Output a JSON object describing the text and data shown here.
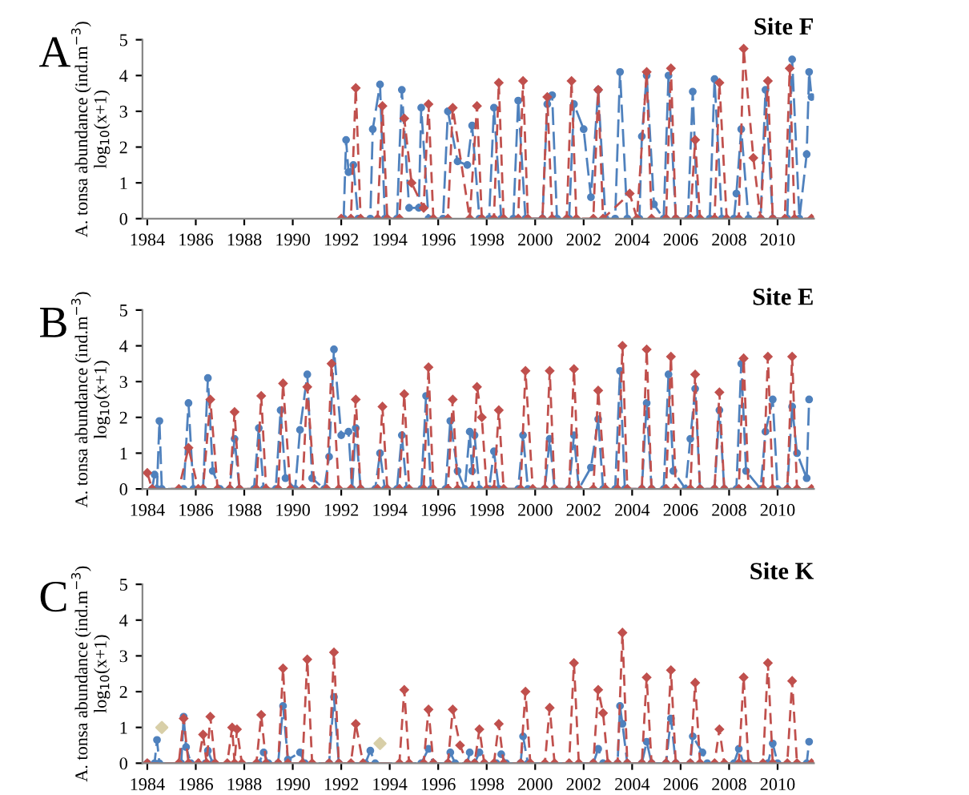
{
  "chart_data": [
    {
      "type": "line",
      "title": "Site F",
      "annotations": [
        "A"
      ],
      "ylabel": "A. tonsa abundance (ind.m$^{−3}$)\nlog$_{10}$(x+1)",
      "xlim": [
        1983.8,
        2011.5
      ],
      "xticks": [
        1984,
        1986,
        1988,
        1990,
        1992,
        1994,
        1996,
        1998,
        2000,
        2002,
        2004,
        2006,
        2008,
        2010
      ],
      "ylim": [
        0,
        5
      ],
      "yticks": [
        0,
        1,
        2,
        3,
        4,
        5
      ],
      "series": [
        {
          "color": "#4f81bd",
          "marker": "circle",
          "line_style": "dashed",
          "x": [
            1992.1,
            1992.2,
            1992.3,
            1992.5,
            1992.7,
            1993.2,
            1993.3,
            1993.6,
            1993.8,
            1994.3,
            1994.5,
            1994.8,
            1995.2,
            1995.3,
            1995.6,
            1996.2,
            1996.4,
            1996.8,
            1997.2,
            1997.4,
            1997.7,
            1998.1,
            1998.3,
            1998.6,
            1999.1,
            1999.3,
            1999.6,
            2000.3,
            2000.5,
            2000.7,
            2000.9,
            2001.4,
            2001.6,
            2002.0,
            2002.3,
            2002.6,
            2002.9,
            2003.3,
            2003.5,
            2003.8,
            2004.3,
            2004.4,
            2004.6,
            2004.9,
            2005.3,
            2005.5,
            2005.8,
            2006.3,
            2006.5,
            2006.7,
            2007.2,
            2007.4,
            2007.7,
            2008.2,
            2008.3,
            2008.5,
            2008.8,
            2009.3,
            2009.5,
            2009.8,
            2010.4,
            2010.6,
            2010.9,
            2011.2,
            2011.3,
            2011.4
          ],
          "values": [
            0,
            2.2,
            1.3,
            1.5,
            0,
            0,
            2.5,
            3.75,
            0,
            0,
            3.6,
            0.3,
            0.3,
            3.1,
            0,
            0,
            3.0,
            1.6,
            1.5,
            2.6,
            0,
            0,
            3.1,
            0,
            0,
            3.3,
            0,
            0,
            3.2,
            3.45,
            0,
            0,
            3.2,
            2.5,
            0.6,
            3.6,
            0,
            0,
            4.1,
            0,
            0,
            2.3,
            4.0,
            0.4,
            0,
            4.0,
            0,
            0,
            3.55,
            0,
            0,
            3.9,
            0,
            0,
            0.7,
            2.5,
            0,
            0,
            3.6,
            0,
            0,
            4.45,
            0,
            1.8,
            4.1,
            3.4
          ]
        },
        {
          "color": "#c0504d",
          "marker": "diamond",
          "line_style": "dashed",
          "x": [
            1992.0,
            1992.4,
            1992.6,
            1992.8,
            1993.5,
            1993.7,
            1993.9,
            1994.4,
            1994.6,
            1994.9,
            1995.4,
            1995.6,
            1995.8,
            1996.4,
            1996.6,
            1997.3,
            1997.6,
            1997.8,
            1998.3,
            1998.5,
            1998.7,
            1999.3,
            1999.5,
            1999.7,
            2000.3,
            2000.5,
            2000.7,
            2001.3,
            2001.5,
            2001.7,
            2002.4,
            2002.6,
            2002.8,
            2003.9,
            2004.2,
            2004.6,
            2004.8,
            2005.4,
            2005.6,
            2005.8,
            2006.4,
            2006.6,
            2006.8,
            2007.4,
            2007.6,
            2007.9,
            2008.4,
            2008.6,
            2009.0,
            2009.3,
            2009.6,
            2009.8,
            2010.3,
            2010.5,
            2010.7,
            2011.4
          ],
          "values": [
            0,
            0,
            3.65,
            0,
            0,
            3.15,
            0,
            0,
            2.8,
            1.0,
            0.3,
            3.2,
            0,
            0,
            3.1,
            0,
            3.15,
            0,
            0,
            3.8,
            0,
            0,
            3.85,
            0,
            0,
            3.4,
            0,
            0,
            3.85,
            0,
            0,
            3.6,
            0,
            0.7,
            0,
            4.1,
            0,
            0,
            4.2,
            0,
            0,
            2.2,
            0,
            0,
            3.8,
            0,
            0,
            4.75,
            1.7,
            0,
            3.85,
            0,
            0,
            4.2,
            0,
            0
          ]
        }
      ]
    },
    {
      "type": "line",
      "title": "Site E",
      "annotations": [
        "B"
      ],
      "ylabel": "A. tonsa abundance (ind.m$^{−3}$)\nlog$_{10}$(x+1)",
      "xlim": [
        1983.8,
        2011.5
      ],
      "xticks": [
        1984,
        1986,
        1988,
        1990,
        1992,
        1994,
        1996,
        1998,
        2000,
        2002,
        2004,
        2006,
        2008,
        2010
      ],
      "ylim": [
        0,
        5
      ],
      "yticks": [
        0,
        1,
        2,
        3,
        4,
        5
      ],
      "series": [
        {
          "color": "#4f81bd",
          "marker": "circle",
          "line_style": "dashed",
          "x": [
            1984.2,
            1984.3,
            1984.4,
            1984.5,
            1984.6,
            1985.5,
            1985.7,
            1985.9,
            1986.3,
            1986.5,
            1986.7,
            1987.0,
            1987.4,
            1987.6,
            1987.8,
            1988.4,
            1988.6,
            1988.8,
            1989.3,
            1989.5,
            1989.7,
            1990.1,
            1990.3,
            1990.6,
            1990.8,
            1991.3,
            1991.5,
            1991.7,
            1992.0,
            1992.3,
            1992.45,
            1992.6,
            1992.8,
            1993.4,
            1993.6,
            1993.8,
            1994.3,
            1994.5,
            1994.7,
            1995.3,
            1995.5,
            1995.7,
            1996.3,
            1996.5,
            1996.8,
            1997.1,
            1997.3,
            1997.4,
            1997.5,
            1997.7,
            1998.1,
            1998.3,
            1998.5,
            1999.3,
            1999.5,
            1999.7,
            2000.4,
            2000.6,
            2000.8,
            2001.4,
            2001.6,
            2001.8,
            2002.3,
            2002.6,
            2002.8,
            2003.3,
            2003.5,
            2003.7,
            2004.4,
            2004.6,
            2004.8,
            2005.3,
            2005.5,
            2005.7,
            2006.2,
            2006.4,
            2006.6,
            2006.8,
            2007.4,
            2007.6,
            2007.8,
            2008.3,
            2008.5,
            2008.7,
            2009.3,
            2009.5,
            2009.8,
            2010.0,
            2010.4,
            2010.6,
            2010.8,
            2011.2,
            2011.3
          ],
          "values": [
            0,
            0.4,
            0,
            1.9,
            0,
            0,
            2.4,
            0,
            0,
            3.1,
            0.5,
            0,
            0,
            1.4,
            0,
            0,
            1.7,
            0,
            0,
            2.2,
            0.3,
            0,
            1.65,
            3.2,
            0.3,
            0,
            0.9,
            3.9,
            1.5,
            1.6,
            0,
            1.7,
            0,
            0,
            1.0,
            0,
            0,
            1.5,
            0,
            0,
            2.6,
            0,
            0,
            1.9,
            0.5,
            0,
            1.6,
            0.5,
            1.5,
            0,
            0,
            1.05,
            0,
            0,
            1.5,
            0,
            0,
            1.4,
            0,
            0,
            1.5,
            0,
            0.6,
            1.95,
            0,
            0,
            3.3,
            0,
            0,
            2.4,
            0,
            0,
            3.2,
            0.5,
            0,
            1.4,
            2.8,
            0,
            0,
            2.2,
            0,
            0,
            3.5,
            0.5,
            0,
            1.6,
            2.5,
            0,
            0,
            2.3,
            1.0,
            0.3,
            2.5
          ]
        },
        {
          "color": "#c0504d",
          "marker": "diamond",
          "line_style": "dashed",
          "x": [
            1984.0,
            1984.2,
            1985.3,
            1985.7,
            1986.1,
            1986.3,
            1986.6,
            1986.9,
            1987.4,
            1987.6,
            1987.8,
            1988.5,
            1988.7,
            1988.9,
            1989.4,
            1989.6,
            1989.9,
            1990.4,
            1990.6,
            1990.9,
            1991.4,
            1991.6,
            1991.9,
            1992.4,
            1992.6,
            1992.8,
            1993.5,
            1993.7,
            1993.9,
            1994.4,
            1994.6,
            1994.8,
            1995.4,
            1995.6,
            1995.8,
            1996.4,
            1996.6,
            1996.8,
            1997.4,
            1997.6,
            1997.8,
            1998.0,
            1998.3,
            1998.5,
            1998.7,
            1999.4,
            1999.6,
            1999.9,
            2000.4,
            2000.6,
            2000.8,
            2001.4,
            2001.6,
            2001.8,
            2002.4,
            2002.6,
            2002.9,
            2003.4,
            2003.6,
            2003.8,
            2004.4,
            2004.6,
            2004.8,
            2005.4,
            2005.6,
            2005.8,
            2006.4,
            2006.6,
            2006.8,
            2007.4,
            2007.6,
            2007.8,
            2008.4,
            2008.6,
            2008.8,
            2009.4,
            2009.6,
            2009.8,
            2010.4,
            2010.6,
            2010.8,
            2011.4
          ],
          "values": [
            0.45,
            0,
            0,
            1.15,
            0,
            0,
            2.5,
            0,
            0,
            2.15,
            0,
            0,
            2.6,
            0,
            0,
            2.95,
            0,
            0,
            2.85,
            0,
            0,
            3.5,
            0,
            0,
            2.5,
            0,
            0,
            2.3,
            0,
            0,
            2.65,
            0,
            0,
            3.4,
            0,
            0,
            2.5,
            0,
            0,
            2.85,
            2.0,
            0,
            0,
            2.2,
            0,
            0,
            3.3,
            0,
            0,
            3.3,
            0,
            0,
            3.35,
            0,
            0,
            2.75,
            0,
            0,
            4.0,
            0,
            0,
            3.9,
            0,
            0,
            3.7,
            0,
            0,
            3.2,
            0,
            0,
            2.7,
            0,
            0,
            3.65,
            0,
            0,
            3.7,
            0,
            0,
            3.7,
            0,
            0
          ]
        }
      ]
    },
    {
      "type": "line",
      "title": "Site K",
      "annotations": [
        "C"
      ],
      "ylabel": "A. tonsa abundance (ind.m$^{−3}$)\nlog$_{10}$(x+1)",
      "xlim": [
        1983.8,
        2011.5
      ],
      "xticks": [
        1984,
        1986,
        1988,
        1990,
        1992,
        1994,
        1996,
        1998,
        2000,
        2002,
        2004,
        2006,
        2008,
        2010
      ],
      "ylim": [
        0,
        5
      ],
      "yticks": [
        0,
        1,
        2,
        3,
        4,
        5
      ],
      "series": [
        {
          "color": "#4f81bd",
          "marker": "circle",
          "line_style": "dashed",
          "x": [
            1984.0,
            1984.3,
            1984.4,
            1984.5,
            1985.4,
            1985.5,
            1985.6,
            1985.8,
            1986.4,
            1986.5,
            1986.7,
            1988.6,
            1988.8,
            1989.0,
            1989.4,
            1989.6,
            1989.8,
            1990.3,
            1990.5,
            1991.5,
            1991.7,
            1991.9,
            1993.0,
            1993.2,
            1993.4,
            1995.3,
            1995.6,
            1995.8,
            1996.4,
            1996.5,
            1996.7,
            1997.2,
            1997.3,
            1997.5,
            1997.7,
            1997.9,
            1998.4,
            1998.6,
            1998.8,
            1999.4,
            1999.5,
            1999.7,
            2002.4,
            2002.6,
            2002.8,
            2003.4,
            2003.5,
            2003.6,
            2003.8,
            2004.4,
            2004.6,
            2004.8,
            2005.4,
            2005.6,
            2005.8,
            2006.4,
            2006.5,
            2006.9,
            2007.1,
            2008.2,
            2008.4,
            2008.6,
            2009.6,
            2009.8,
            2010.0,
            2011.2,
            2011.3
          ],
          "values": [
            0,
            0,
            0.65,
            0,
            0,
            1.3,
            0.45,
            0,
            0,
            0.35,
            0,
            0,
            0.3,
            0,
            0,
            1.6,
            0.1,
            0.3,
            0,
            0,
            1.85,
            0,
            0,
            0.35,
            0,
            0,
            0.4,
            0,
            0,
            0.3,
            0,
            0,
            0.3,
            0,
            0.3,
            0,
            0,
            0.25,
            0,
            0,
            0.75,
            0,
            0,
            0.4,
            0,
            0,
            1.6,
            1.1,
            0,
            0,
            0.6,
            0,
            0,
            1.25,
            0,
            0,
            0.75,
            0.3,
            0,
            0,
            0.4,
            0,
            0,
            0.55,
            0,
            0,
            0.6
          ]
        },
        {
          "color": "#c0504d",
          "marker": "diamond",
          "line_style": "dashed",
          "x": [
            1984.0,
            1985.3,
            1985.5,
            1985.7,
            1986.1,
            1986.3,
            1986.45,
            1986.6,
            1986.8,
            1987.3,
            1987.5,
            1987.6,
            1987.7,
            1987.9,
            1988.5,
            1988.7,
            1988.9,
            1989.4,
            1989.6,
            1989.8,
            1990.4,
            1990.6,
            1990.8,
            1991.5,
            1991.7,
            1991.9,
            1992.4,
            1992.6,
            1992.9,
            1994.4,
            1994.6,
            1994.8,
            1995.4,
            1995.6,
            1995.8,
            1996.4,
            1996.6,
            1996.9,
            1997.2,
            1997.5,
            1997.7,
            1997.9,
            1998.3,
            1998.5,
            1998.7,
            1999.4,
            1999.6,
            1999.8,
            2000.4,
            2000.6,
            2000.8,
            2001.4,
            2001.6,
            2001.8,
            2002.4,
            2002.6,
            2002.8,
            2003.0,
            2003.4,
            2003.6,
            2003.8,
            2004.4,
            2004.6,
            2004.8,
            2005.4,
            2005.6,
            2005.8,
            2006.4,
            2006.6,
            2006.8,
            2007.4,
            2007.6,
            2007.8,
            2008.4,
            2008.6,
            2008.8,
            2009.4,
            2009.6,
            2009.8,
            2010.4,
            2010.6,
            2010.8,
            2011.4
          ],
          "values": [
            0,
            0,
            1.25,
            0,
            0,
            0.8,
            0,
            1.3,
            0,
            0,
            1.0,
            0,
            0.95,
            0,
            0,
            1.35,
            0,
            0,
            2.65,
            0,
            0,
            2.9,
            0,
            0,
            3.1,
            0,
            0,
            1.1,
            0,
            0,
            2.05,
            0,
            0,
            1.5,
            0,
            0,
            1.5,
            0.5,
            0,
            0,
            0.95,
            0,
            0,
            1.1,
            0,
            0,
            2.0,
            0,
            0,
            1.55,
            0,
            0,
            2.8,
            0,
            0,
            2.05,
            1.4,
            0,
            0,
            3.65,
            0,
            0,
            2.4,
            0,
            0,
            2.6,
            0,
            0,
            2.25,
            0,
            0,
            0.95,
            0,
            0,
            2.4,
            0,
            0,
            2.8,
            0,
            0,
            2.3,
            0,
            0
          ]
        },
        {
          "type": "scatter",
          "color": "#d8cfa8",
          "marker": "diamond",
          "x": [
            1984.6,
            1993.6
          ],
          "values": [
            1.0,
            0.55
          ]
        }
      ]
    }
  ]
}
